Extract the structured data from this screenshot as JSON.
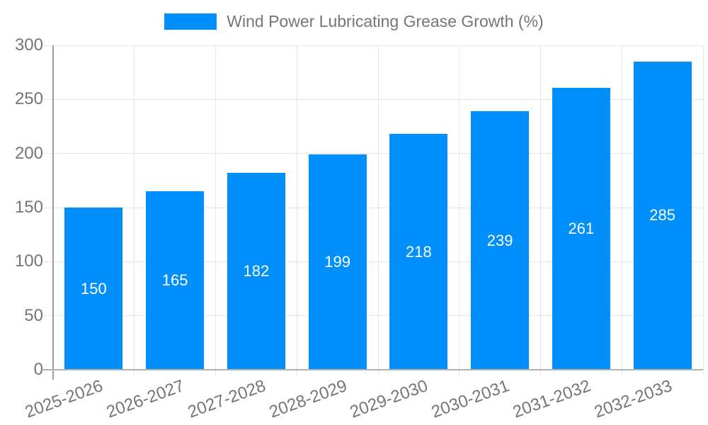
{
  "chart_data": {
    "type": "bar",
    "title": "Wind Power Lubricating Grease Growth (%)",
    "categories": [
      "2025-2026",
      "2026-2027",
      "2027-2028",
      "2028-2029",
      "2029-2030",
      "2030-2031",
      "2031-2032",
      "2032-2033"
    ],
    "values": [
      150,
      165,
      182,
      199,
      218,
      239,
      261,
      285
    ],
    "series_name": "Wind Power Lubricating Grease Growth (%)",
    "xlabel": "",
    "ylabel": "",
    "ylim": [
      0,
      300
    ],
    "yticks": [
      0,
      50,
      100,
      150,
      200,
      250,
      300
    ],
    "grid": true,
    "legend_position": "top",
    "x_label_rotation_deg": -20,
    "value_label_position": "inside-center",
    "colors": {
      "bar": "#008ffb",
      "value_label": "#ffffff",
      "axis_text": "#757575",
      "legend_text": "#757575",
      "gridline": "#e6e6e6",
      "y_axis_line": "#9e9e9e",
      "x_axis_line": "#b3b3b3",
      "background": "#ffffff"
    }
  },
  "legend": {
    "items": [
      {
        "label": "Wind Power Lubricating Grease Growth (%)",
        "marker_color": "#008ffb"
      }
    ]
  }
}
